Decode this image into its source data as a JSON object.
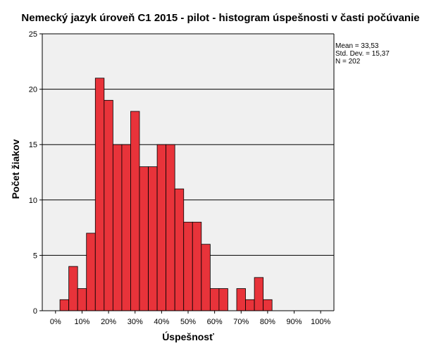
{
  "chart_data": {
    "type": "bar",
    "title": "Nemecký jazyk úroveň C1 2015 - pilot - histogram úspešnosti v časti počúvanie",
    "xlabel": "Úspešnosť",
    "ylabel": "Počet žiakov",
    "xlim": [
      -5,
      105
    ],
    "ylim": [
      0,
      25
    ],
    "x_tick_values": [
      0,
      10,
      20,
      30,
      40,
      50,
      60,
      70,
      80,
      90,
      100
    ],
    "x_tick_labels": [
      "0%",
      "10%",
      "20%",
      "30%",
      "40%",
      "50%",
      "60%",
      "70%",
      "80%",
      "90%",
      "100%"
    ],
    "y_ticks": [
      0,
      5,
      10,
      15,
      20,
      25
    ],
    "grid": true,
    "bin_width": 3.33,
    "bin_centers": [
      3.33,
      6.67,
      10,
      13.33,
      16.67,
      20,
      23.33,
      26.67,
      30,
      33.33,
      36.67,
      40,
      43.33,
      46.67,
      50,
      53.33,
      56.67,
      60,
      63.33,
      70,
      73.33,
      76.67,
      80
    ],
    "values": [
      1,
      4,
      2,
      7,
      21,
      19,
      15,
      15,
      18,
      13,
      13,
      15,
      15,
      11,
      8,
      8,
      6,
      2,
      2,
      2,
      1,
      3,
      1
    ],
    "bar_color": "#e8333a",
    "stats": {
      "mean": "Mean = 33,53",
      "std": "Std. Dev. = 15,37",
      "n": "N = 202"
    }
  }
}
